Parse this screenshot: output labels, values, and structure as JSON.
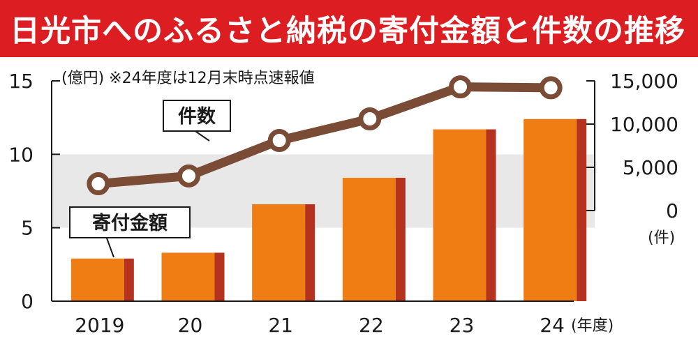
{
  "title": "日光市へのふるさと納税の寄付金額と件数の推移",
  "colors": {
    "title_bg": "#dc1e23",
    "bar_front": "#f07d14",
    "bar_side": "#b4321e",
    "line": "#7a4b35",
    "marker_fill": "#ffffff",
    "band": "#e8e8e8"
  },
  "chart_data": {
    "type": "bar+line",
    "note": "(億円) ※24年度は12月末時点速報値",
    "categories": [
      "2019",
      "20",
      "21",
      "22",
      "23",
      "24"
    ],
    "x_unit": "(年度)",
    "left_axis": {
      "ticks": [
        "15",
        "10",
        "5",
        "0"
      ],
      "range": [
        0,
        15
      ]
    },
    "right_axis": {
      "ticks": [
        "15,000",
        "10,000",
        "5,000",
        "0"
      ],
      "range": [
        0,
        15000
      ],
      "unit": "(件)"
    },
    "bar_series": {
      "name": "寄付金額",
      "values": [
        2.9,
        3.3,
        6.6,
        8.4,
        11.7,
        12.4
      ]
    },
    "line_series": {
      "name": "件数",
      "values": [
        3100,
        4000,
        8100,
        10600,
        14300,
        14200
      ]
    },
    "grid": "alternating bands"
  }
}
